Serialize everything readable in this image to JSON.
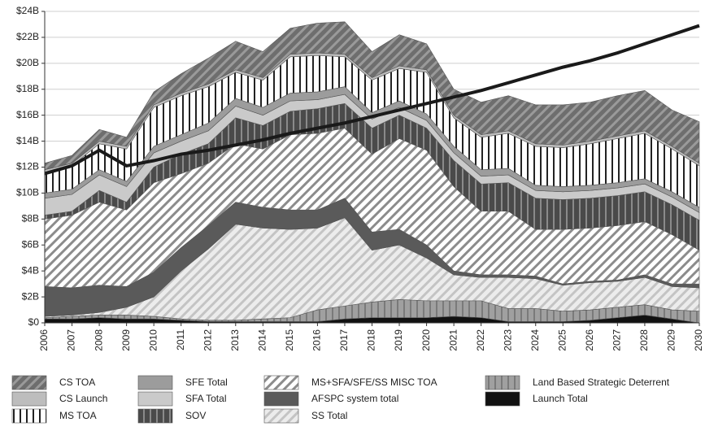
{
  "chart_data": {
    "type": "stacked_area",
    "categories": [
      "2006",
      "2007",
      "2008",
      "2009",
      "2010",
      "2011",
      "2012",
      "2013",
      "2014",
      "2015",
      "2016",
      "2017",
      "2018",
      "2019",
      "2020",
      "2021",
      "2022",
      "2023",
      "2024",
      "2025",
      "2026",
      "2027",
      "2028",
      "2029",
      "2030"
    ],
    "ylim": [
      0,
      24
    ],
    "yticks": [
      {
        "value": 0,
        "label": "$0"
      },
      {
        "value": 2,
        "label": "$2B"
      },
      {
        "value": 4,
        "label": "$4B"
      },
      {
        "value": 6,
        "label": "$6B"
      },
      {
        "value": 8,
        "label": "$8B"
      },
      {
        "value": 10,
        "label": "$10B"
      },
      {
        "value": 12,
        "label": "$12B"
      },
      {
        "value": 14,
        "label": "$14B"
      },
      {
        "value": 16,
        "label": "$16B"
      },
      {
        "value": 18,
        "label": "$18B"
      },
      {
        "value": 20,
        "label": "$20B"
      },
      {
        "value": 22,
        "label": "$22B"
      },
      {
        "value": 24,
        "label": "$24B"
      }
    ],
    "grid": true,
    "series": [
      {
        "name": "CS TOA",
        "color": "#6e6e6e",
        "pattern": "diagonal",
        "pattern_color": "#9a9a9a",
        "values": [
          0.5,
          0.6,
          0.9,
          0.7,
          1.0,
          1.5,
          2.0,
          2.2,
          2.0,
          2.0,
          2.3,
          2.5,
          2.0,
          2.4,
          2.0,
          2.0,
          2.5,
          2.7,
          3.0,
          3.1,
          3.0,
          3.1,
          3.1,
          2.8,
          3.2
        ]
      },
      {
        "name": "CS Launch",
        "color": "#bdbdbd",
        "pattern": "solid",
        "pattern_color": "#bdbdbd",
        "values": [
          0.2,
          0.2,
          0.2,
          0.2,
          0.2,
          0.2,
          0.2,
          0.2,
          0.2,
          0.2,
          0.2,
          0.2,
          0.2,
          0.2,
          0.2,
          0.2,
          0.2,
          0.2,
          0.2,
          0.2,
          0.2,
          0.2,
          0.2,
          0.2,
          0.2
        ]
      },
      {
        "name": "MS TOA",
        "color": "#ffffff",
        "pattern": "vertical",
        "pattern_color": "#222222",
        "values": [
          1.6,
          1.8,
          2.0,
          2.5,
          3.0,
          3.0,
          2.8,
          2.0,
          2.1,
          2.8,
          2.8,
          2.3,
          2.5,
          2.5,
          3.2,
          2.2,
          2.5,
          2.7,
          3.0,
          3.0,
          3.2,
          3.4,
          3.5,
          3.3,
          3.2
        ]
      },
      {
        "name": "SFE Total",
        "color": "#9c9c9c",
        "pattern": "solid",
        "pattern_color": "#9c9c9c",
        "values": [
          0.4,
          0.4,
          0.4,
          0.4,
          0.5,
          0.5,
          0.6,
          0.6,
          0.6,
          0.6,
          0.6,
          0.6,
          0.5,
          0.5,
          0.5,
          0.5,
          0.5,
          0.5,
          0.4,
          0.4,
          0.4,
          0.4,
          0.4,
          0.4,
          0.4
        ]
      },
      {
        "name": "SFA Total",
        "color": "#cacaca",
        "pattern": "solid",
        "pattern_color": "#cacaca",
        "values": [
          1.3,
          1.3,
          1.2,
          1.2,
          1.1,
          1.0,
          1.0,
          0.9,
          0.8,
          0.8,
          0.7,
          0.7,
          0.7,
          0.6,
          0.6,
          0.6,
          0.6,
          0.6,
          0.6,
          0.6,
          0.6,
          0.6,
          0.6,
          0.6,
          0.6
        ]
      },
      {
        "name": "SOV",
        "color": "#4a4a4a",
        "pattern": "vertical",
        "pattern_color": "#8a8a8a",
        "values": [
          0.3,
          0.3,
          0.9,
          0.6,
          1.2,
          1.5,
          1.5,
          2.0,
          1.8,
          1.8,
          1.9,
          1.9,
          2.0,
          1.8,
          1.7,
          2.0,
          2.1,
          2.2,
          2.4,
          2.3,
          2.3,
          2.3,
          2.3,
          2.3,
          2.3
        ]
      },
      {
        "name": "MS+SFA/SFE/SS MISC TOA",
        "color": "#ffffff",
        "pattern": "diagonal",
        "pattern_color": "#8c8c8c",
        "values": [
          5.2,
          5.6,
          6.4,
          5.9,
          6.9,
          5.7,
          4.8,
          4.5,
          4.5,
          5.8,
          5.9,
          5.4,
          6.0,
          7.0,
          7.3,
          6.5,
          4.9,
          4.9,
          3.6,
          4.2,
          4.1,
          4.2,
          4.1,
          3.8,
          2.6
        ]
      },
      {
        "name": "AFSPC system total",
        "color": "#5a5a5a",
        "pattern": "solid",
        "pattern_color": "#5a5a5a",
        "values": [
          2.3,
          2.1,
          2.1,
          1.6,
          1.9,
          1.8,
          1.8,
          1.7,
          1.6,
          1.5,
          1.4,
          1.5,
          1.4,
          1.2,
          1.0,
          0.3,
          0.2,
          0.2,
          0.2,
          0.1,
          0.1,
          0.1,
          0.2,
          0.2,
          0.3
        ]
      },
      {
        "name": "SS Total",
        "color": "#ececec",
        "pattern": "diagonal",
        "pattern_color": "#c4c4c4",
        "values": [
          0.1,
          0.1,
          0.2,
          0.6,
          1.5,
          3.7,
          5.5,
          7.4,
          7.0,
          6.8,
          6.3,
          6.8,
          4.0,
          4.2,
          3.3,
          2.0,
          1.8,
          2.4,
          2.3,
          2.0,
          2.1,
          2.0,
          2.1,
          1.8,
          1.8
        ]
      },
      {
        "name": "Land Based Strategic Deterrent",
        "color": "#a0a0a0",
        "pattern": "vertical",
        "pattern_color": "#7a7a7a",
        "values": [
          0.1,
          0.2,
          0.2,
          0.3,
          0.2,
          0.1,
          0.1,
          0.1,
          0.2,
          0.3,
          0.9,
          1.0,
          1.2,
          1.4,
          1.3,
          1.2,
          1.3,
          1.0,
          1.0,
          0.8,
          0.8,
          0.8,
          0.8,
          0.7,
          0.9
        ]
      },
      {
        "name": "Launch Total",
        "color": "#111111",
        "pattern": "solid",
        "pattern_color": "#111111",
        "values": [
          0.3,
          0.3,
          0.4,
          0.3,
          0.3,
          0.2,
          0.1,
          0.1,
          0.1,
          0.1,
          0.1,
          0.3,
          0.4,
          0.4,
          0.4,
          0.5,
          0.4,
          0.1,
          0.1,
          0.1,
          0.2,
          0.4,
          0.6,
          0.3,
          0
        ]
      }
    ],
    "line": {
      "color": "#1a1a1a",
      "values": [
        11.5,
        12.1,
        13.3,
        12.1,
        12.5,
        13.0,
        13.3,
        13.7,
        14.1,
        14.6,
        15.0,
        15.4,
        15.9,
        16.4,
        16.9,
        17.4,
        17.9,
        18.5,
        19.1,
        19.7,
        20.2,
        20.8,
        21.5,
        22.2,
        22.9
      ]
    }
  }
}
